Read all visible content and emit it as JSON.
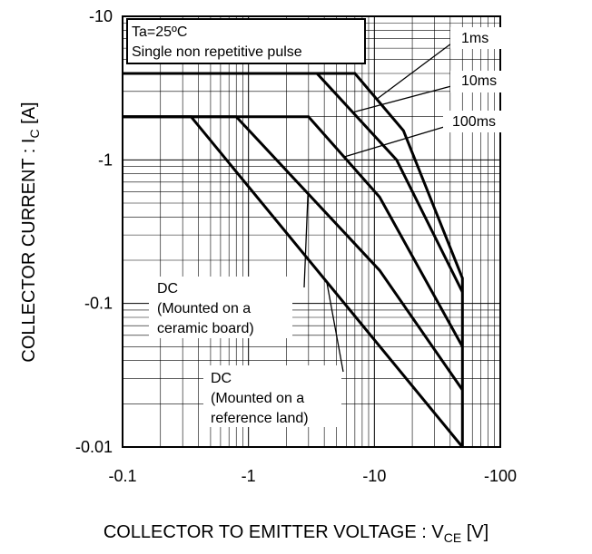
{
  "chart_data": {
    "type": "line",
    "title": "",
    "xlabel": "COLLECTOR TO EMITTER VOLTAGE : V",
    "xlabel_sub": "CE",
    "xlabel_unit": " [V]",
    "ylabel": "COLLECTOR CURRENT : I",
    "ylabel_sub": "C",
    "ylabel_unit": " [A]",
    "x_scale": "log",
    "y_scale": "log",
    "xlim": [
      -0.1,
      -100
    ],
    "ylim": [
      -0.01,
      -10
    ],
    "x_ticks": [
      {
        "value": -0.1,
        "label": "-0.1"
      },
      {
        "value": -1,
        "label": "-1"
      },
      {
        "value": -10,
        "label": "-10"
      },
      {
        "value": -100,
        "label": "-100"
      }
    ],
    "y_ticks": [
      {
        "value": -0.01,
        "label": "-0.01"
      },
      {
        "value": -0.1,
        "label": "-0.1"
      },
      {
        "value": -1,
        "label": "-1"
      },
      {
        "value": -10,
        "label": "-10"
      }
    ],
    "grid": true,
    "condition_box": [
      "Ta=25ºC",
      "Single non repetitive pulse"
    ],
    "series": [
      {
        "name": "1ms",
        "points": [
          [
            -0.1,
            -4
          ],
          [
            -7,
            -4
          ],
          [
            -17,
            -1.6
          ],
          [
            -50,
            -0.15
          ],
          [
            -50,
            -0.01
          ]
        ]
      },
      {
        "name": "10ms",
        "points": [
          [
            -0.1,
            -4
          ],
          [
            -3.5,
            -4
          ],
          [
            -15,
            -1
          ],
          [
            -50,
            -0.12
          ]
        ]
      },
      {
        "name": "100ms",
        "points": [
          [
            -0.1,
            -2
          ],
          [
            -3,
            -2
          ],
          [
            -11,
            -0.55
          ],
          [
            -50,
            -0.05
          ]
        ]
      },
      {
        "name": "DC (Mounted on a ceramic board)",
        "points": [
          [
            -0.1,
            -2
          ],
          [
            -0.8,
            -2
          ],
          [
            -11,
            -0.17
          ],
          [
            -50,
            -0.025
          ]
        ]
      },
      {
        "name": "DC (Mounted on a reference land)",
        "points": [
          [
            -0.1,
            -2
          ],
          [
            -0.35,
            -2
          ],
          [
            -50,
            -0.01
          ]
        ]
      }
    ],
    "labels": [
      {
        "text": "1ms",
        "series": "1ms",
        "lines": [
          "1ms"
        ]
      },
      {
        "text": "10ms",
        "series": "10ms",
        "lines": [
          "10ms"
        ]
      },
      {
        "text": "100ms",
        "series": "100ms",
        "lines": [
          "100ms"
        ]
      },
      {
        "text": "DC (Mounted on a ceramic board)",
        "series": "DC (Mounted on a ceramic board)",
        "lines": [
          "DC",
          "(Mounted on a",
          "ceramic board)"
        ]
      },
      {
        "text": "DC (Mounted on a reference land)",
        "series": "DC (Mounted on a reference land)",
        "lines": [
          "DC",
          "(Mounted on a",
          "reference land)"
        ]
      }
    ]
  }
}
